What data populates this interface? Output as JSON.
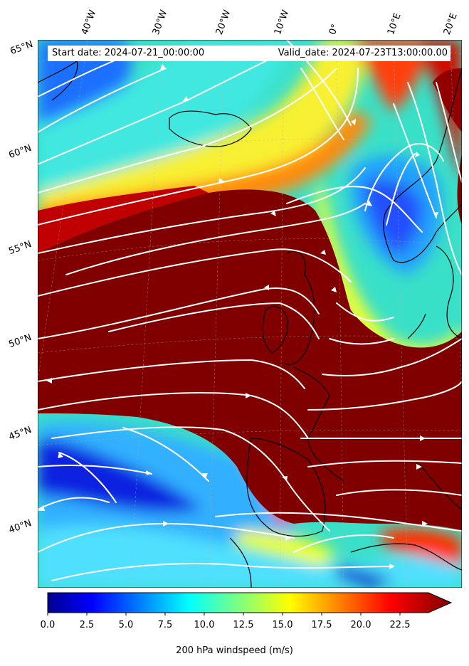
{
  "header": {
    "start_date": "Start date: 2024-07-21_00:00:00",
    "valid_date": "Valid_date: 2024-07-23T13:00:00.00"
  },
  "longitude_labels": [
    "40°W",
    "30°W",
    "20°W",
    "10°W",
    "0°",
    "10°E",
    "20°E"
  ],
  "latitude_labels": [
    "65°N",
    "60°N",
    "55°N",
    "50°N",
    "45°N",
    "40°N"
  ],
  "colorbar": {
    "label": "200 hPa windspeed (m/s)",
    "ticks": [
      "0.0",
      "2.5",
      "5.0",
      "7.5",
      "10.0",
      "12.5",
      "15.0",
      "17.5",
      "20.0",
      "22.5"
    ],
    "min": 0,
    "max": 25,
    "extend": "max",
    "colormap": "jet"
  },
  "colors": {
    "streamline": "#ffffff",
    "coastline": "#000000",
    "jet_core": "#800000"
  }
}
